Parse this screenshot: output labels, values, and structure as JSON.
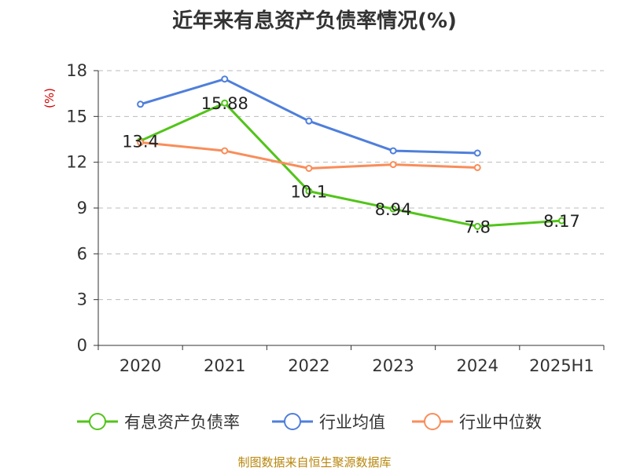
{
  "title": "近年来有息资产负债率情况(%)",
  "source": "制图数据来自恒生聚源数据库",
  "chart_data": {
    "type": "line",
    "title": "近年来有息资产负债率情况(%)",
    "ylabel": "(%)",
    "xlabel": "",
    "categories": [
      "2020",
      "2021",
      "2022",
      "2023",
      "2024",
      "2025H1"
    ],
    "yticks": [
      0,
      3,
      6,
      9,
      12,
      15,
      18
    ],
    "ylim": [
      0,
      18
    ],
    "grid": true,
    "legend_position": "bottom",
    "series": [
      {
        "name": "有息资产负债率",
        "color": "#52c41a",
        "values": [
          13.4,
          15.88,
          10.1,
          8.94,
          7.8,
          8.17
        ],
        "labels": [
          "13.4",
          "15.88",
          "10.1",
          "8.94",
          "7.8",
          "8.17"
        ]
      },
      {
        "name": "行业均值",
        "color": "#4f7fdb",
        "values": [
          15.8,
          17.45,
          14.7,
          12.75,
          12.6,
          null
        ]
      },
      {
        "name": "行业中位数",
        "color": "#f98d5a",
        "values": [
          13.3,
          12.75,
          11.6,
          11.85,
          11.65,
          null
        ]
      }
    ]
  }
}
